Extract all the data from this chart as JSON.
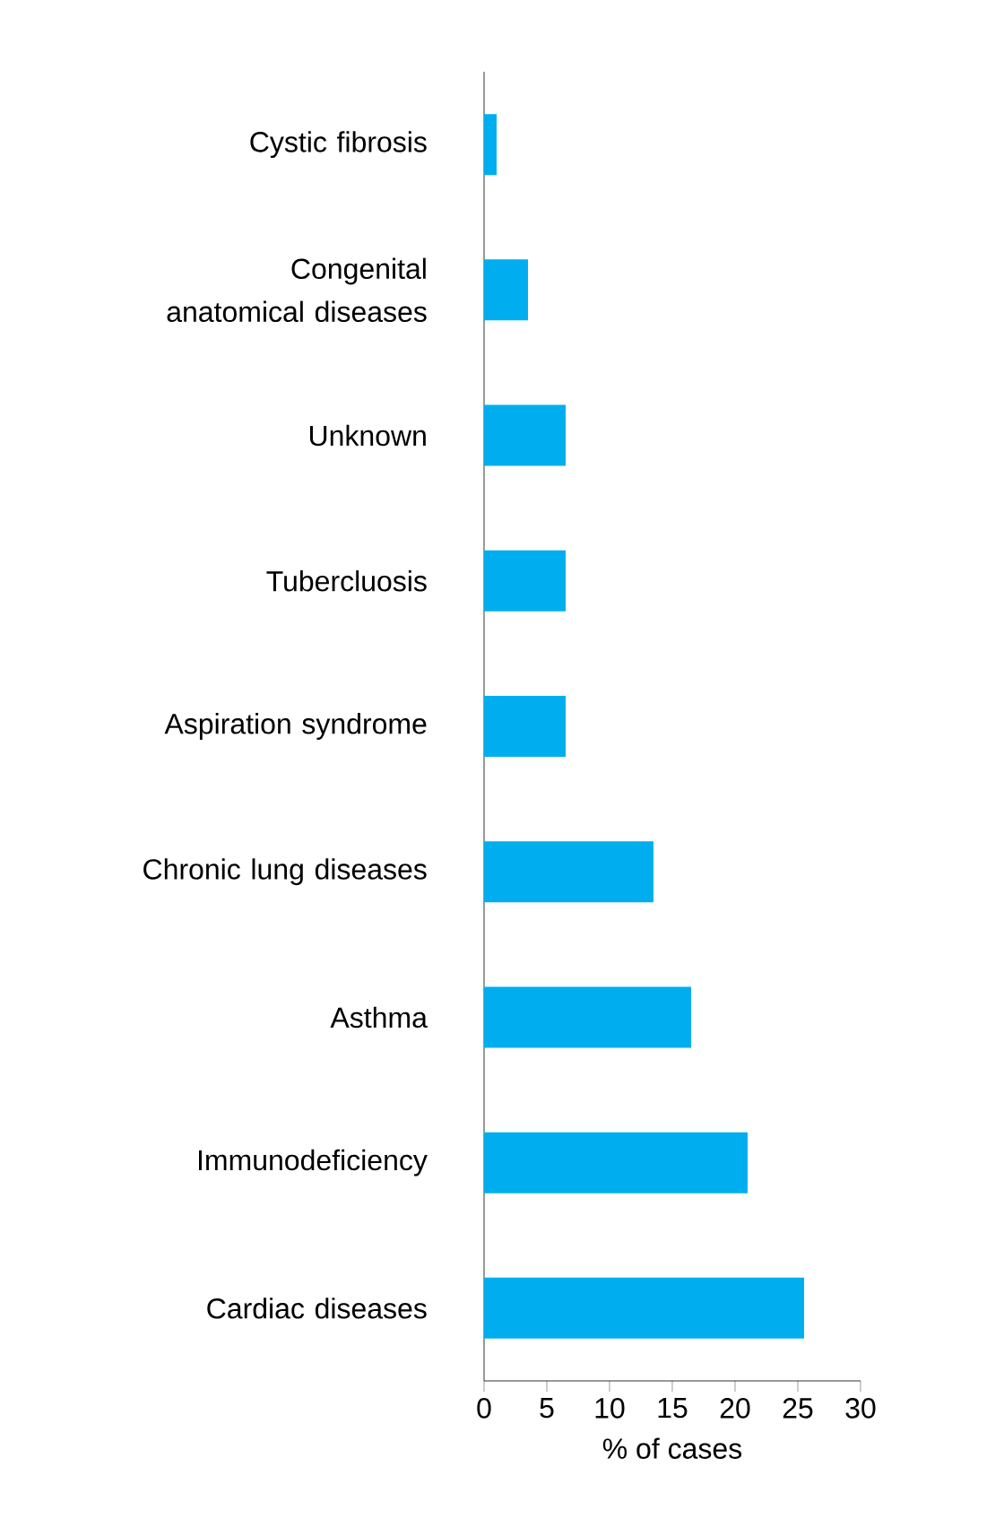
{
  "chart_data": {
    "type": "bar",
    "orientation": "horizontal",
    "xlabel": "% of cases",
    "categories": [
      "Cystic fibrosis",
      "Congenital anatomical diseases",
      "Unknown",
      "Tubercluosis",
      "Aspiration syndrome",
      "Chronic lung diseases",
      "Asthma",
      "Immunodeficiency",
      "Cardiac diseases"
    ],
    "values": [
      1,
      3.5,
      6.5,
      6.5,
      6.5,
      13.5,
      16.5,
      21,
      25.5
    ],
    "color": "#00aeef",
    "xlim": [
      0,
      30
    ],
    "xticks": [
      0,
      5,
      10,
      15,
      20,
      25,
      30
    ]
  }
}
